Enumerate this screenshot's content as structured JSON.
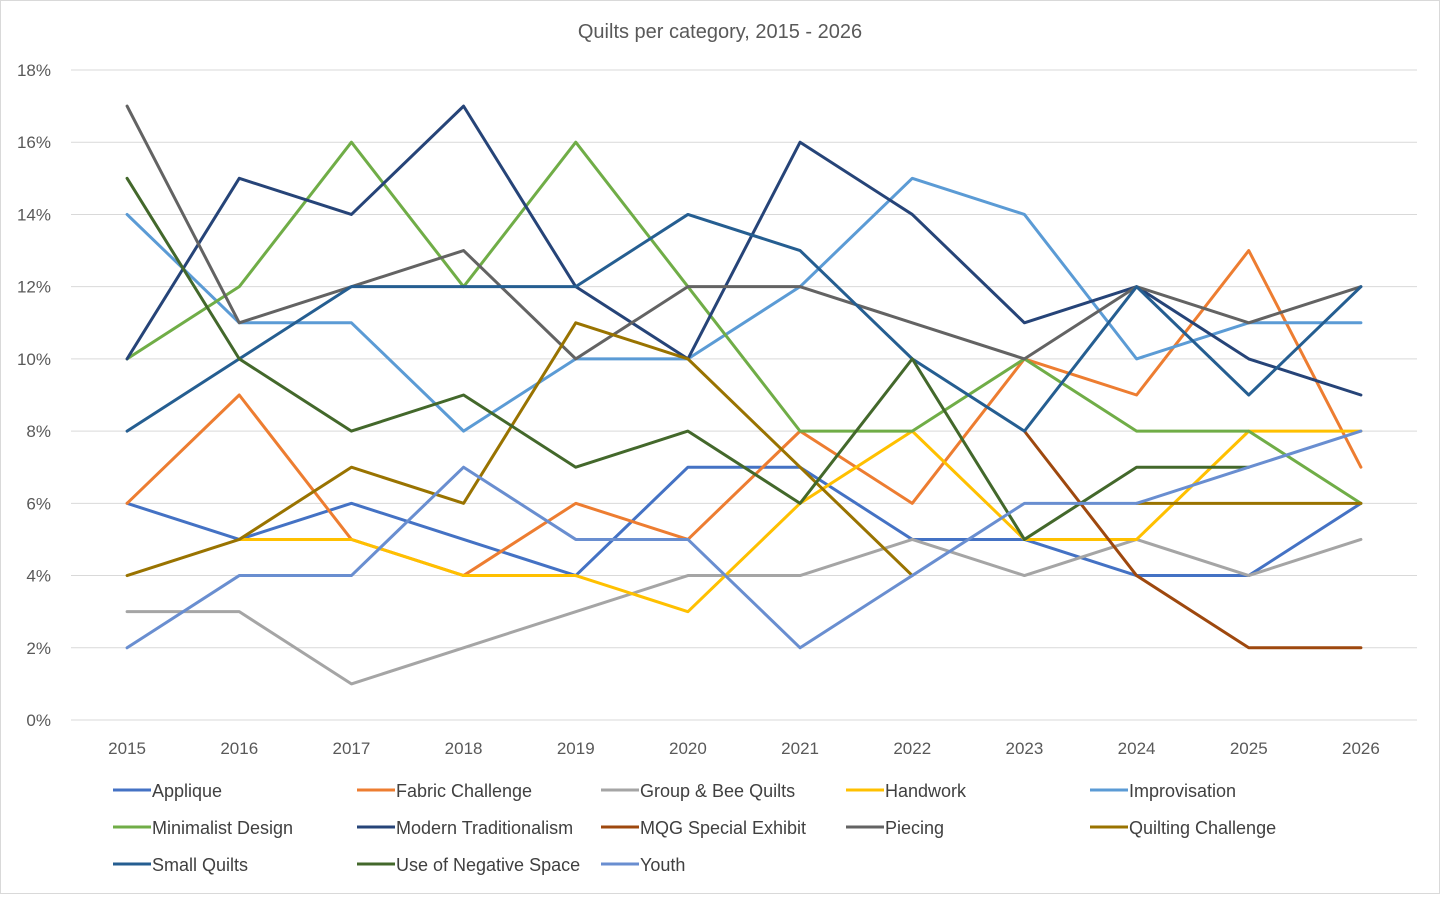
{
  "chart_data": {
    "type": "line",
    "title": "Quilts per category, 2015 - 2026",
    "xlabel": "",
    "ylabel": "",
    "x": [
      "2015",
      "2016",
      "2017",
      "2018",
      "2019",
      "2020",
      "2021",
      "2022",
      "2023",
      "2024",
      "2025",
      "2026"
    ],
    "ylim": [
      0,
      18
    ],
    "y_tick_step": 2,
    "y_tick_format": "percent",
    "grid": "horizontal",
    "legend_position": "bottom",
    "series": [
      {
        "name": "Applique",
        "color": "#4472C4",
        "values": [
          6,
          5,
          6,
          5,
          4,
          7,
          7,
          5,
          5,
          4,
          4,
          6
        ]
      },
      {
        "name": "Fabric Challenge",
        "color": "#ED7D31",
        "values": [
          6,
          9,
          5,
          4,
          6,
          5,
          8,
          6,
          10,
          9,
          13,
          7
        ]
      },
      {
        "name": "Group & Bee Quilts",
        "color": "#A5A5A5",
        "values": [
          3,
          3,
          1,
          2,
          3,
          4,
          4,
          5,
          4,
          5,
          4,
          5
        ]
      },
      {
        "name": "Handwork",
        "color": "#FFC000",
        "values": [
          null,
          5,
          5,
          4,
          4,
          3,
          6,
          8,
          5,
          5,
          8,
          8
        ]
      },
      {
        "name": "Improvisation",
        "color": "#5B9BD5",
        "values": [
          14,
          11,
          11,
          8,
          10,
          10,
          12,
          15,
          14,
          10,
          11,
          11
        ]
      },
      {
        "name": "Minimalist Design",
        "color": "#70AD47",
        "values": [
          10,
          12,
          16,
          12,
          16,
          12,
          8,
          8,
          10,
          8,
          8,
          6
        ]
      },
      {
        "name": "Modern Traditionalism",
        "color": "#264478",
        "values": [
          10,
          15,
          14,
          17,
          12,
          10,
          16,
          14,
          11,
          12,
          10,
          9
        ]
      },
      {
        "name": "MQG Special Exhibit",
        "color": "#9E480E",
        "values": [
          null,
          null,
          null,
          null,
          null,
          null,
          null,
          null,
          8,
          4,
          2,
          2
        ]
      },
      {
        "name": "Piecing",
        "color": "#636363",
        "values": [
          17,
          11,
          12,
          13,
          10,
          12,
          12,
          11,
          10,
          12,
          11,
          12
        ]
      },
      {
        "name": "Quilting Challenge",
        "color": "#997300",
        "values": [
          4,
          5,
          7,
          6,
          11,
          10,
          7,
          4,
          null,
          6,
          6,
          6
        ]
      },
      {
        "name": "Small Quilts",
        "color": "#255E91",
        "values": [
          8,
          10,
          12,
          12,
          12,
          14,
          13,
          10,
          8,
          12,
          9,
          12
        ]
      },
      {
        "name": "Use of Negative Space",
        "color": "#43682B",
        "values": [
          15,
          10,
          8,
          9,
          7,
          8,
          6,
          10,
          5,
          7,
          7,
          null
        ]
      },
      {
        "name": "Youth",
        "color": "#698ED0",
        "values": [
          2,
          4,
          4,
          7,
          5,
          5,
          2,
          4,
          6,
          6,
          7,
          8
        ]
      }
    ]
  }
}
